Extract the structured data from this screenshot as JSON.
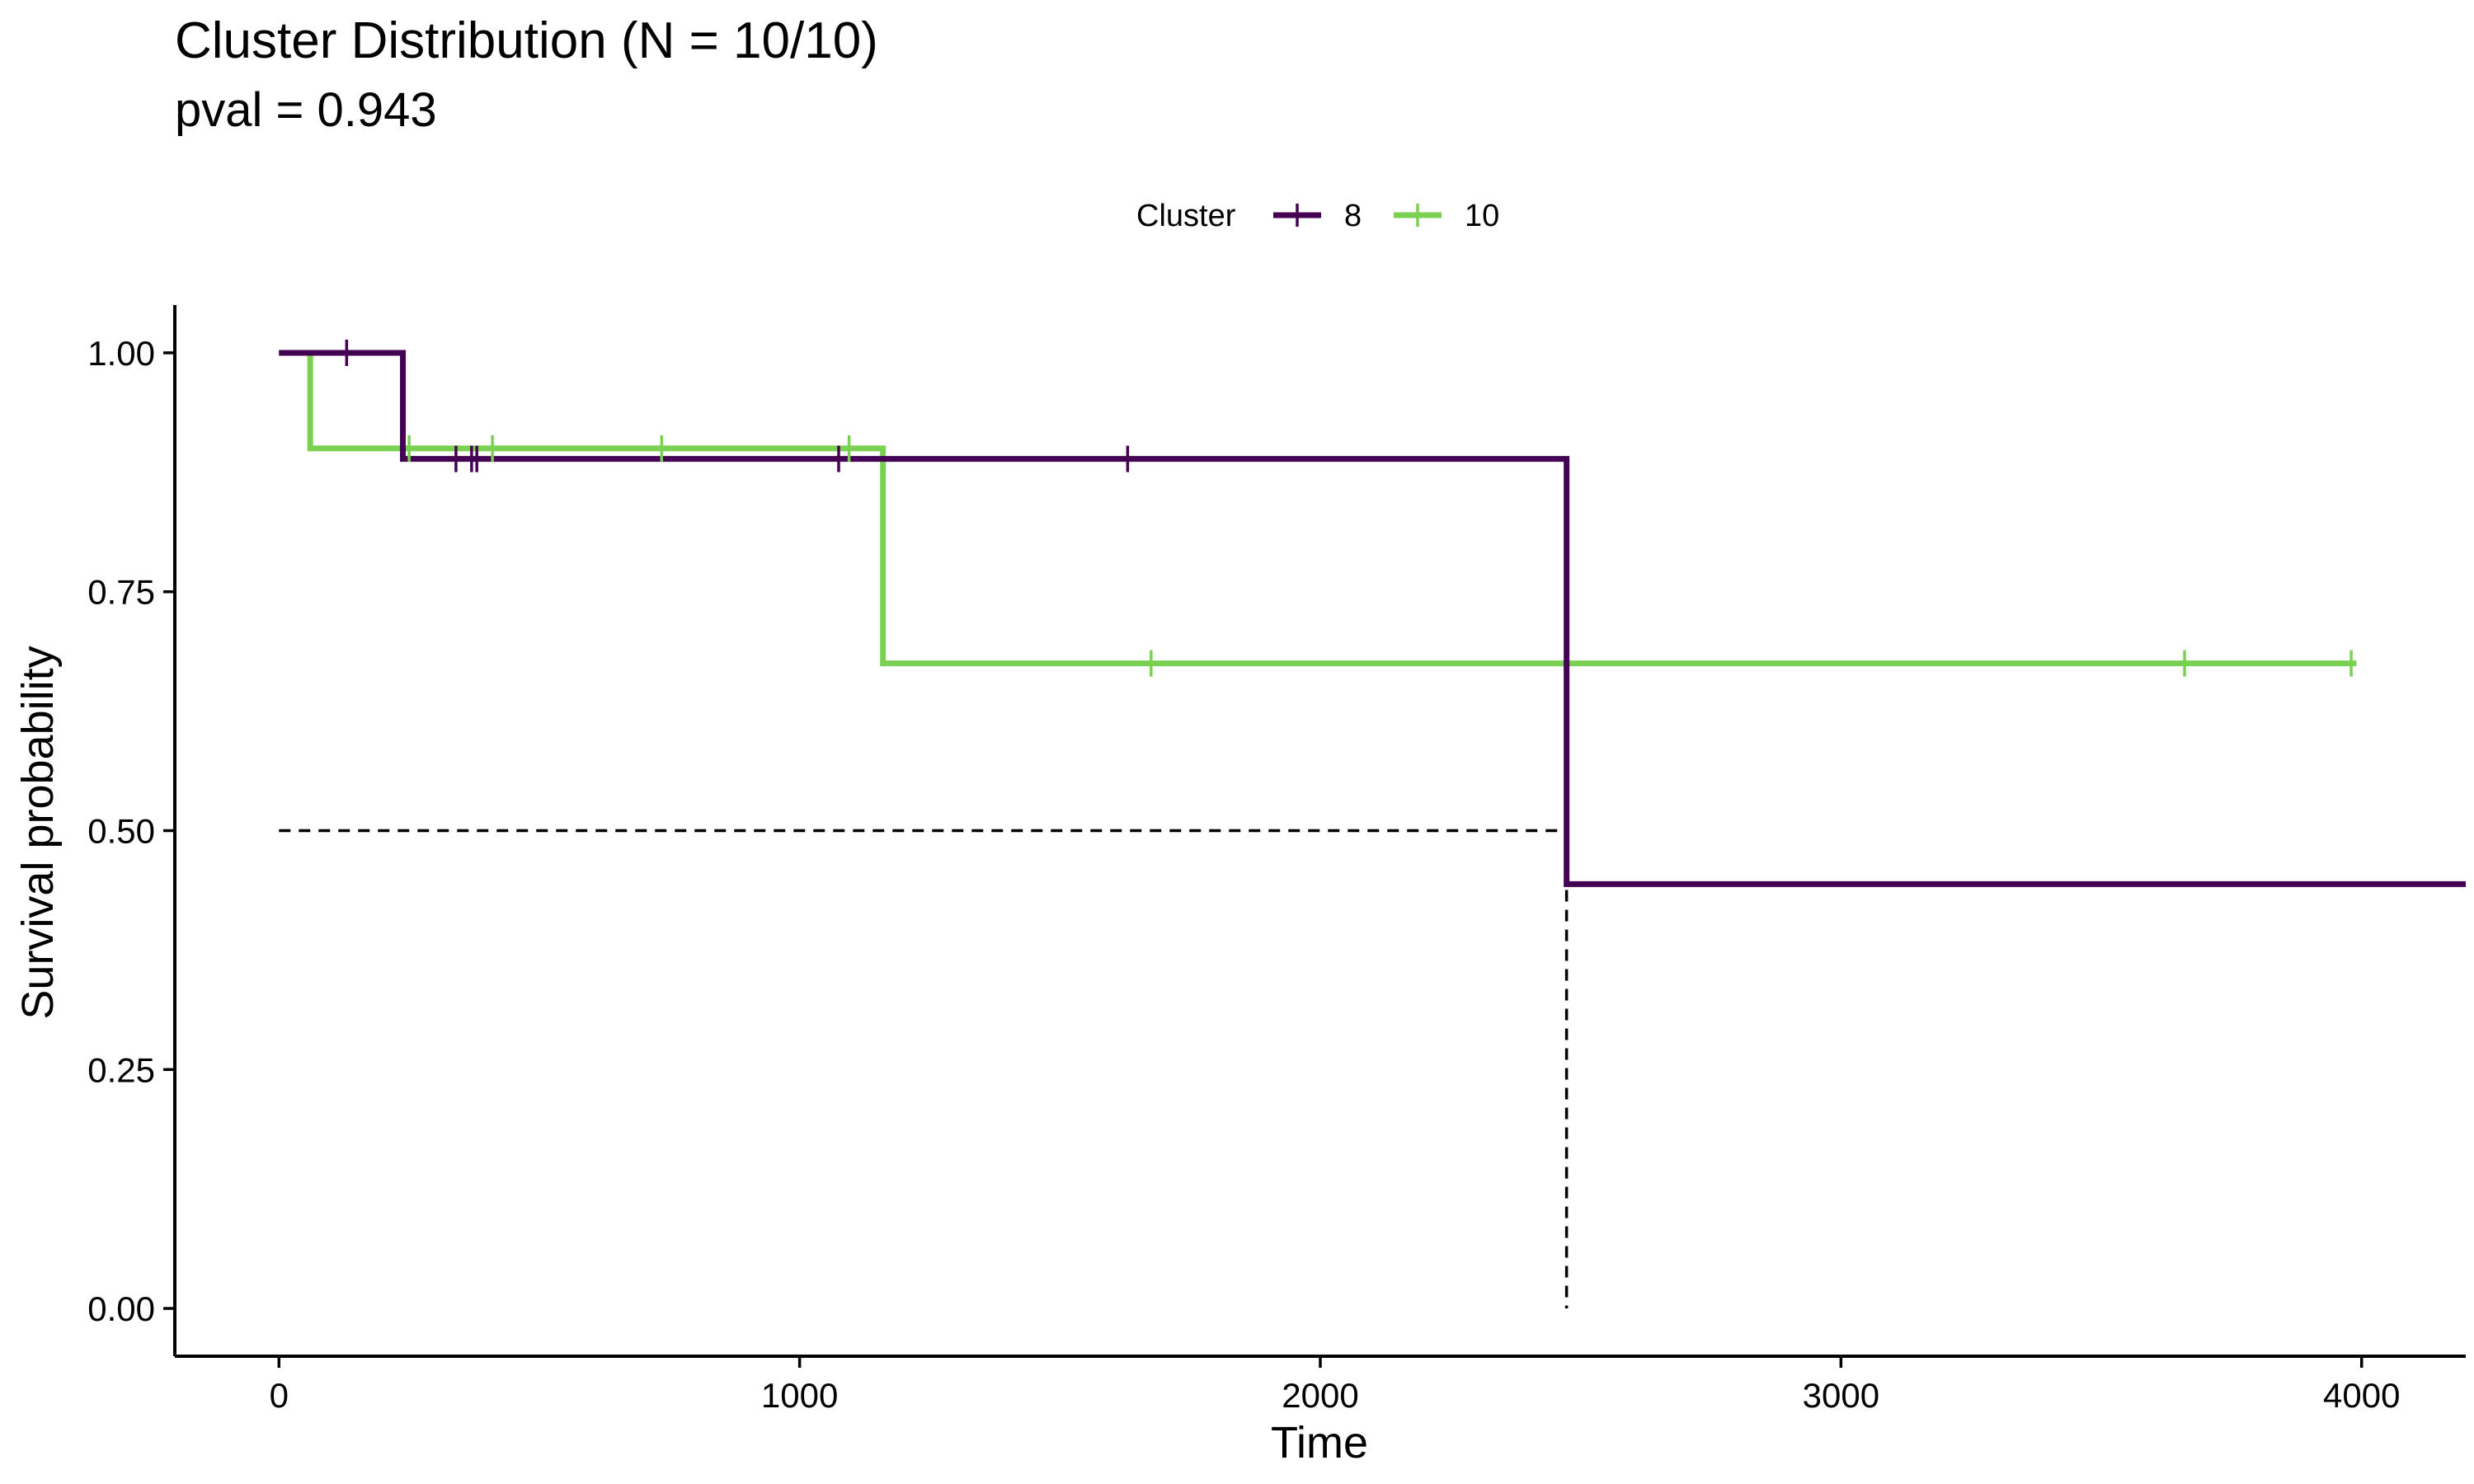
{
  "chart_data": {
    "type": "line",
    "subtype": "kaplan-meier step",
    "title": "Cluster Distribution (N = 10/10)",
    "subtitle": "pval = 0.943",
    "xlabel": "Time",
    "ylabel": "Survival probability",
    "xlim": [
      -200,
      4200
    ],
    "ylim": [
      -0.05,
      1.05
    ],
    "xticks": [
      0,
      1000,
      2000,
      3000,
      4000
    ],
    "xtick_labels": [
      "0",
      "1000",
      "2000",
      "3000",
      "4000"
    ],
    "yticks": [
      0,
      0.25,
      0.5,
      0.75,
      1.0
    ],
    "ytick_labels": [
      "0.00",
      "0.25",
      "0.50",
      "0.75",
      "1.00"
    ],
    "grid": false,
    "legend": {
      "title": "Cluster",
      "position": "top"
    },
    "series": [
      {
        "name": "8",
        "color": "#440154",
        "steps": [
          [
            0,
            1.0
          ],
          [
            238,
            0.889
          ],
          [
            2473,
            0.444
          ],
          [
            4200,
            0.444
          ]
        ],
        "censor_times": [
          130,
          340,
          370,
          380,
          1075,
          1630
        ]
      },
      {
        "name": "10",
        "color": "#7AD151",
        "steps": [
          [
            0,
            1.0
          ],
          [
            60,
            0.9
          ],
          [
            1160,
            0.675
          ],
          [
            3990,
            0.675
          ]
        ],
        "censor_times": [
          250,
          410,
          735,
          1095,
          1675,
          3660,
          3980
        ]
      }
    ],
    "median_lines": {
      "style": "dashed",
      "color": "#000000",
      "survival": 0.5,
      "time": 2473
    }
  }
}
